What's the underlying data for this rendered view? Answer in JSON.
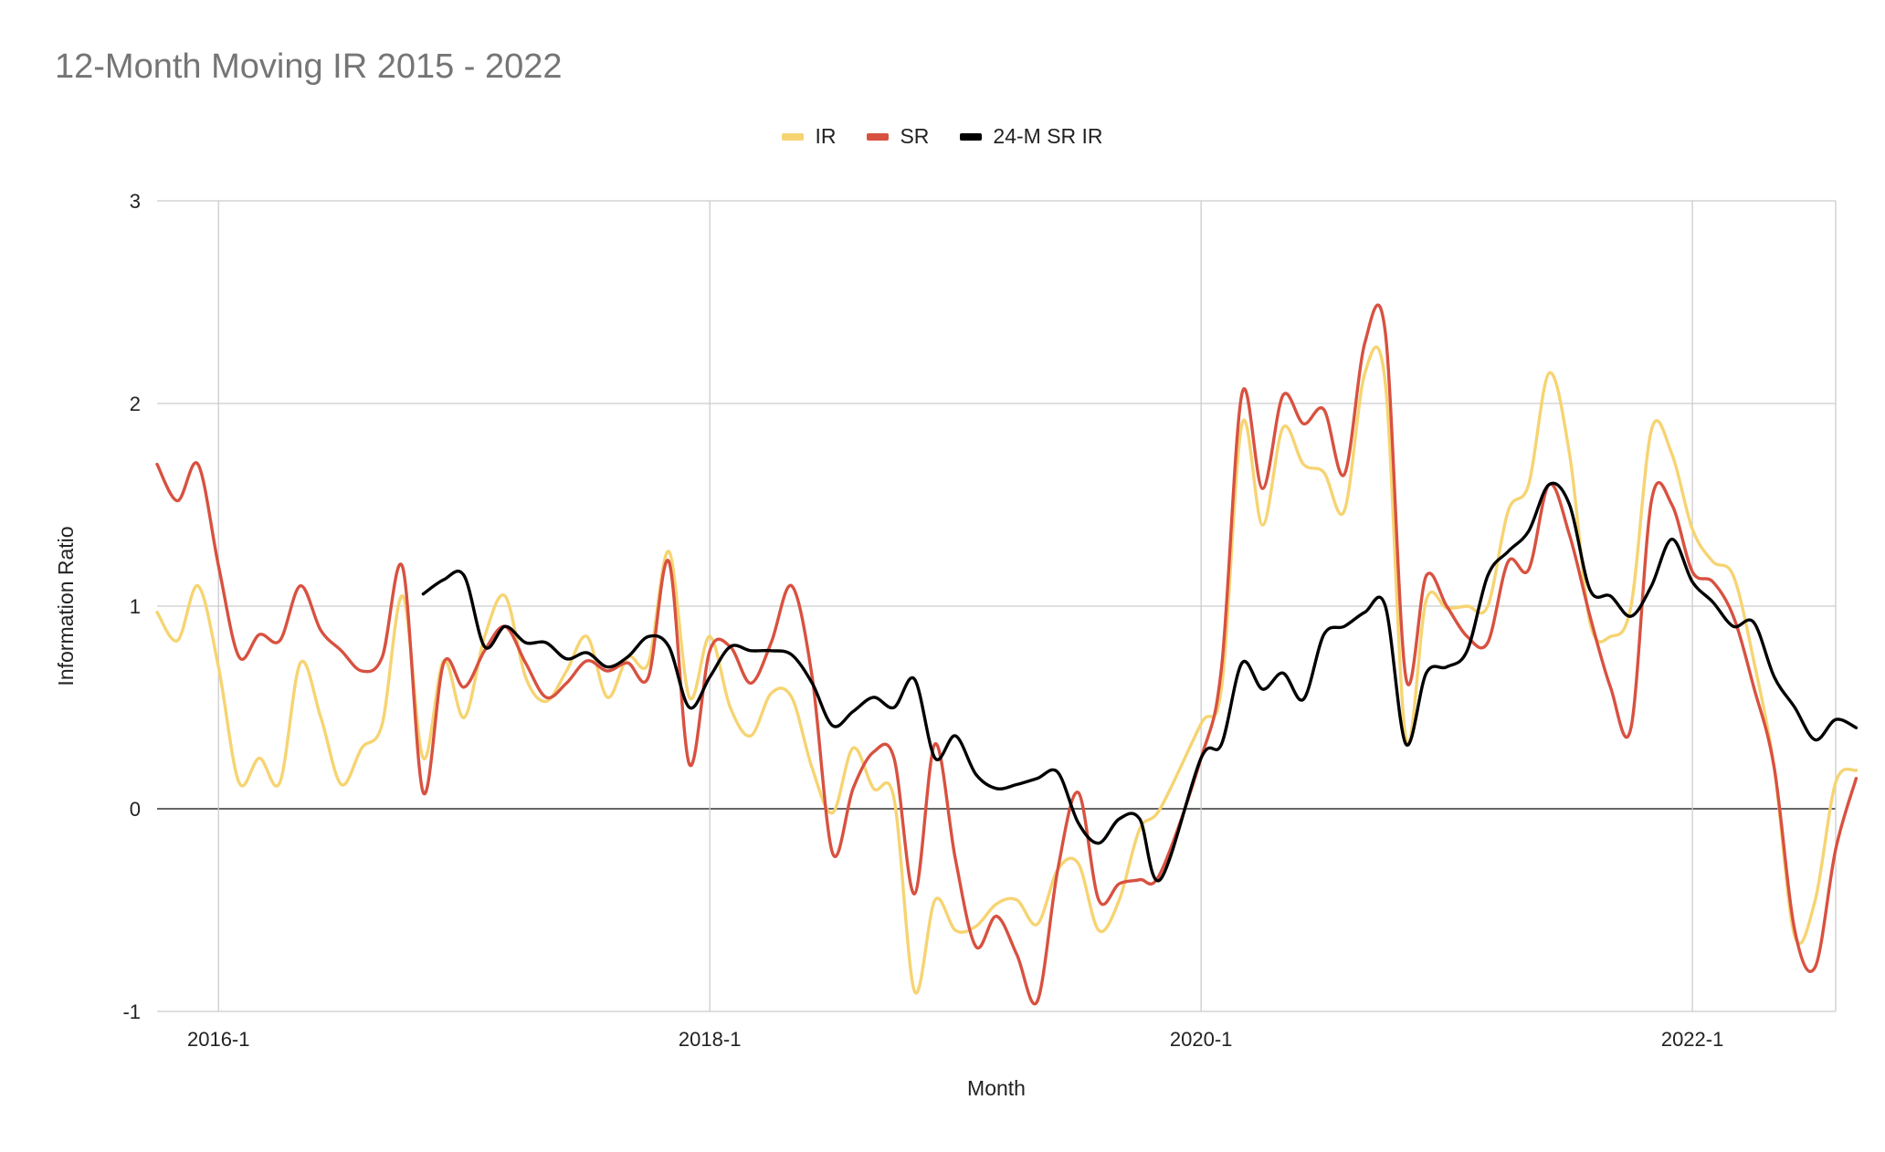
{
  "chart_data": {
    "type": "line",
    "title": "12-Month Moving IR 2015 - 2022",
    "xlabel": "Month",
    "ylabel": "Information Ratio",
    "ylim": [
      -1,
      3
    ],
    "yticks": [
      "-1",
      "0",
      "1",
      "2",
      "3"
    ],
    "xticks": [
      {
        "label": "2016-1",
        "x": "2016-01"
      },
      {
        "label": "2018-1",
        "x": "2018-01"
      },
      {
        "label": "2020-1",
        "x": "2020-01"
      },
      {
        "label": "2022-1",
        "x": "2022-01"
      }
    ],
    "x_range": [
      "2015-10",
      "2022-08"
    ],
    "grid": true,
    "legend_position": "top-center",
    "series": [
      {
        "name": "IR",
        "color": "#f6d472",
        "points": [
          [
            "2015-10",
            0.97
          ],
          [
            "2015-11",
            0.83
          ],
          [
            "2015-12",
            1.1
          ],
          [
            "2016-01",
            0.7
          ],
          [
            "2016-02",
            0.13
          ],
          [
            "2016-03",
            0.25
          ],
          [
            "2016-04",
            0.13
          ],
          [
            "2016-05",
            0.72
          ],
          [
            "2016-06",
            0.45
          ],
          [
            "2016-07",
            0.12
          ],
          [
            "2016-08",
            0.3
          ],
          [
            "2016-09",
            0.42
          ],
          [
            "2016-10",
            1.05
          ],
          [
            "2016-11",
            0.25
          ],
          [
            "2016-12",
            0.73
          ],
          [
            "2017-01",
            0.45
          ],
          [
            "2017-02",
            0.85
          ],
          [
            "2017-03",
            1.05
          ],
          [
            "2017-04",
            0.65
          ],
          [
            "2017-05",
            0.53
          ],
          [
            "2017-06",
            0.68
          ],
          [
            "2017-07",
            0.85
          ],
          [
            "2017-08",
            0.55
          ],
          [
            "2017-09",
            0.75
          ],
          [
            "2017-10",
            0.72
          ],
          [
            "2017-11",
            1.27
          ],
          [
            "2017-12",
            0.55
          ],
          [
            "2018-01",
            0.85
          ],
          [
            "2018-02",
            0.5
          ],
          [
            "2018-03",
            0.36
          ],
          [
            "2018-04",
            0.57
          ],
          [
            "2018-05",
            0.55
          ],
          [
            "2018-06",
            0.2
          ],
          [
            "2018-07",
            -0.02
          ],
          [
            "2018-08",
            0.3
          ],
          [
            "2018-09",
            0.1
          ],
          [
            "2018-10",
            0.05
          ],
          [
            "2018-11",
            -0.9
          ],
          [
            "2018-12",
            -0.45
          ],
          [
            "2019-01",
            -0.6
          ],
          [
            "2019-02",
            -0.58
          ],
          [
            "2019-03",
            -0.47
          ],
          [
            "2019-04",
            -0.45
          ],
          [
            "2019-05",
            -0.57
          ],
          [
            "2019-06",
            -0.3
          ],
          [
            "2019-07",
            -0.27
          ],
          [
            "2019-08",
            -0.6
          ],
          [
            "2019-09",
            -0.45
          ],
          [
            "2019-10",
            -0.1
          ],
          [
            "2019-11",
            0.0
          ],
          [
            "2020-01",
            0.42
          ],
          [
            "2020-02",
            0.6
          ],
          [
            "2020-03",
            1.9
          ],
          [
            "2020-04",
            1.4
          ],
          [
            "2020-05",
            1.88
          ],
          [
            "2020-06",
            1.7
          ],
          [
            "2020-07",
            1.66
          ],
          [
            "2020-08",
            1.47
          ],
          [
            "2020-09",
            2.15
          ],
          [
            "2020-10",
            2.1
          ],
          [
            "2020-11",
            0.35
          ],
          [
            "2020-12",
            1.03
          ],
          [
            "2021-01",
            0.99
          ],
          [
            "2021-02",
            1.0
          ],
          [
            "2021-03",
            1.0
          ],
          [
            "2021-04",
            1.47
          ],
          [
            "2021-05",
            1.6
          ],
          [
            "2021-06",
            2.15
          ],
          [
            "2021-07",
            1.75
          ],
          [
            "2021-08",
            0.92
          ],
          [
            "2021-09",
            0.85
          ],
          [
            "2021-10",
            1.0
          ],
          [
            "2021-11",
            1.87
          ],
          [
            "2021-12",
            1.75
          ],
          [
            "2022-01",
            1.38
          ],
          [
            "2022-02",
            1.22
          ],
          [
            "2022-03",
            1.15
          ],
          [
            "2022-04",
            0.73
          ],
          [
            "2022-05",
            0.2
          ],
          [
            "2022-06",
            -0.63
          ],
          [
            "2022-07",
            -0.45
          ],
          [
            "2022-08",
            0.13
          ],
          [
            "2022-09",
            0.19
          ]
        ]
      },
      {
        "name": "SR",
        "color": "#d85140",
        "points": [
          [
            "2015-10",
            1.7
          ],
          [
            "2015-11",
            1.52
          ],
          [
            "2015-12",
            1.7
          ],
          [
            "2016-01",
            1.2
          ],
          [
            "2016-02",
            0.75
          ],
          [
            "2016-03",
            0.86
          ],
          [
            "2016-04",
            0.83
          ],
          [
            "2016-05",
            1.1
          ],
          [
            "2016-06",
            0.88
          ],
          [
            "2016-07",
            0.78
          ],
          [
            "2016-08",
            0.68
          ],
          [
            "2016-09",
            0.75
          ],
          [
            "2016-10",
            1.19
          ],
          [
            "2016-11",
            0.08
          ],
          [
            "2016-12",
            0.72
          ],
          [
            "2017-01",
            0.6
          ],
          [
            "2017-02",
            0.78
          ],
          [
            "2017-03",
            0.9
          ],
          [
            "2017-04",
            0.72
          ],
          [
            "2017-05",
            0.55
          ],
          [
            "2017-06",
            0.62
          ],
          [
            "2017-07",
            0.73
          ],
          [
            "2017-08",
            0.68
          ],
          [
            "2017-09",
            0.72
          ],
          [
            "2017-10",
            0.65
          ],
          [
            "2017-11",
            1.22
          ],
          [
            "2017-12",
            0.22
          ],
          [
            "2018-01",
            0.78
          ],
          [
            "2018-02",
            0.8
          ],
          [
            "2018-03",
            0.62
          ],
          [
            "2018-04",
            0.82
          ],
          [
            "2018-05",
            1.1
          ],
          [
            "2018-06",
            0.65
          ],
          [
            "2018-07",
            -0.22
          ],
          [
            "2018-08",
            0.1
          ],
          [
            "2018-09",
            0.28
          ],
          [
            "2018-10",
            0.25
          ],
          [
            "2018-11",
            -0.42
          ],
          [
            "2018-12",
            0.32
          ],
          [
            "2019-01",
            -0.25
          ],
          [
            "2019-02",
            -0.68
          ],
          [
            "2019-03",
            -0.53
          ],
          [
            "2019-04",
            -0.72
          ],
          [
            "2019-05",
            -0.95
          ],
          [
            "2019-06",
            -0.3
          ],
          [
            "2019-07",
            0.08
          ],
          [
            "2019-08",
            -0.45
          ],
          [
            "2019-09",
            -0.37
          ],
          [
            "2019-10",
            -0.35
          ],
          [
            "2019-11",
            -0.32
          ],
          [
            "2020-01",
            0.25
          ],
          [
            "2020-02",
            0.7
          ],
          [
            "2020-03",
            2.05
          ],
          [
            "2020-04",
            1.58
          ],
          [
            "2020-05",
            2.04
          ],
          [
            "2020-06",
            1.9
          ],
          [
            "2020-07",
            1.97
          ],
          [
            "2020-08",
            1.65
          ],
          [
            "2020-09",
            2.3
          ],
          [
            "2020-10",
            2.35
          ],
          [
            "2020-11",
            0.65
          ],
          [
            "2020-12",
            1.15
          ],
          [
            "2021-01",
            1.0
          ],
          [
            "2021-02",
            0.85
          ],
          [
            "2021-03",
            0.82
          ],
          [
            "2021-04",
            1.22
          ],
          [
            "2021-05",
            1.18
          ],
          [
            "2021-06",
            1.6
          ],
          [
            "2021-07",
            1.35
          ],
          [
            "2021-08",
            0.95
          ],
          [
            "2021-09",
            0.6
          ],
          [
            "2021-10",
            0.4
          ],
          [
            "2021-11",
            1.52
          ],
          [
            "2021-12",
            1.5
          ],
          [
            "2022-01",
            1.17
          ],
          [
            "2022-02",
            1.12
          ],
          [
            "2022-03",
            0.95
          ],
          [
            "2022-04",
            0.6
          ],
          [
            "2022-05",
            0.2
          ],
          [
            "2022-06",
            -0.6
          ],
          [
            "2022-07",
            -0.78
          ],
          [
            "2022-08",
            -0.2
          ],
          [
            "2022-09",
            0.15
          ]
        ]
      },
      {
        "name": "24-M SR IR",
        "color": "#000000",
        "points": [
          [
            "2016-11",
            1.06
          ],
          [
            "2016-12",
            1.13
          ],
          [
            "2017-01",
            1.15
          ],
          [
            "2017-02",
            0.8
          ],
          [
            "2017-03",
            0.9
          ],
          [
            "2017-04",
            0.82
          ],
          [
            "2017-05",
            0.82
          ],
          [
            "2017-06",
            0.74
          ],
          [
            "2017-07",
            0.77
          ],
          [
            "2017-08",
            0.7
          ],
          [
            "2017-09",
            0.75
          ],
          [
            "2017-10",
            0.85
          ],
          [
            "2017-11",
            0.8
          ],
          [
            "2017-12",
            0.5
          ],
          [
            "2018-01",
            0.65
          ],
          [
            "2018-02",
            0.8
          ],
          [
            "2018-03",
            0.78
          ],
          [
            "2018-04",
            0.78
          ],
          [
            "2018-05",
            0.76
          ],
          [
            "2018-06",
            0.62
          ],
          [
            "2018-07",
            0.41
          ],
          [
            "2018-08",
            0.48
          ],
          [
            "2018-09",
            0.55
          ],
          [
            "2018-10",
            0.5
          ],
          [
            "2018-11",
            0.64
          ],
          [
            "2018-12",
            0.25
          ],
          [
            "2019-01",
            0.36
          ],
          [
            "2019-02",
            0.17
          ],
          [
            "2019-03",
            0.1
          ],
          [
            "2019-04",
            0.12
          ],
          [
            "2019-05",
            0.15
          ],
          [
            "2019-06",
            0.18
          ],
          [
            "2019-07",
            -0.07
          ],
          [
            "2019-08",
            -0.17
          ],
          [
            "2019-09",
            -0.05
          ],
          [
            "2019-10",
            -0.05
          ],
          [
            "2019-11",
            -0.35
          ],
          [
            "2020-01",
            0.25
          ],
          [
            "2020-02",
            0.32
          ],
          [
            "2020-03",
            0.72
          ],
          [
            "2020-04",
            0.59
          ],
          [
            "2020-05",
            0.67
          ],
          [
            "2020-06",
            0.54
          ],
          [
            "2020-07",
            0.86
          ],
          [
            "2020-08",
            0.9
          ],
          [
            "2020-09",
            0.97
          ],
          [
            "2020-10",
            1.0
          ],
          [
            "2020-11",
            0.32
          ],
          [
            "2020-12",
            0.67
          ],
          [
            "2021-01",
            0.7
          ],
          [
            "2021-02",
            0.78
          ],
          [
            "2021-03",
            1.15
          ],
          [
            "2021-04",
            1.27
          ],
          [
            "2021-05",
            1.37
          ],
          [
            "2021-06",
            1.6
          ],
          [
            "2021-07",
            1.5
          ],
          [
            "2021-08",
            1.08
          ],
          [
            "2021-09",
            1.05
          ],
          [
            "2021-10",
            0.95
          ],
          [
            "2021-11",
            1.1
          ],
          [
            "2021-12",
            1.33
          ],
          [
            "2022-01",
            1.12
          ],
          [
            "2022-02",
            1.02
          ],
          [
            "2022-03",
            0.9
          ],
          [
            "2022-04",
            0.92
          ],
          [
            "2022-05",
            0.65
          ],
          [
            "2022-06",
            0.5
          ],
          [
            "2022-07",
            0.34
          ],
          [
            "2022-08",
            0.44
          ],
          [
            "2022-09",
            0.4
          ]
        ]
      }
    ]
  }
}
